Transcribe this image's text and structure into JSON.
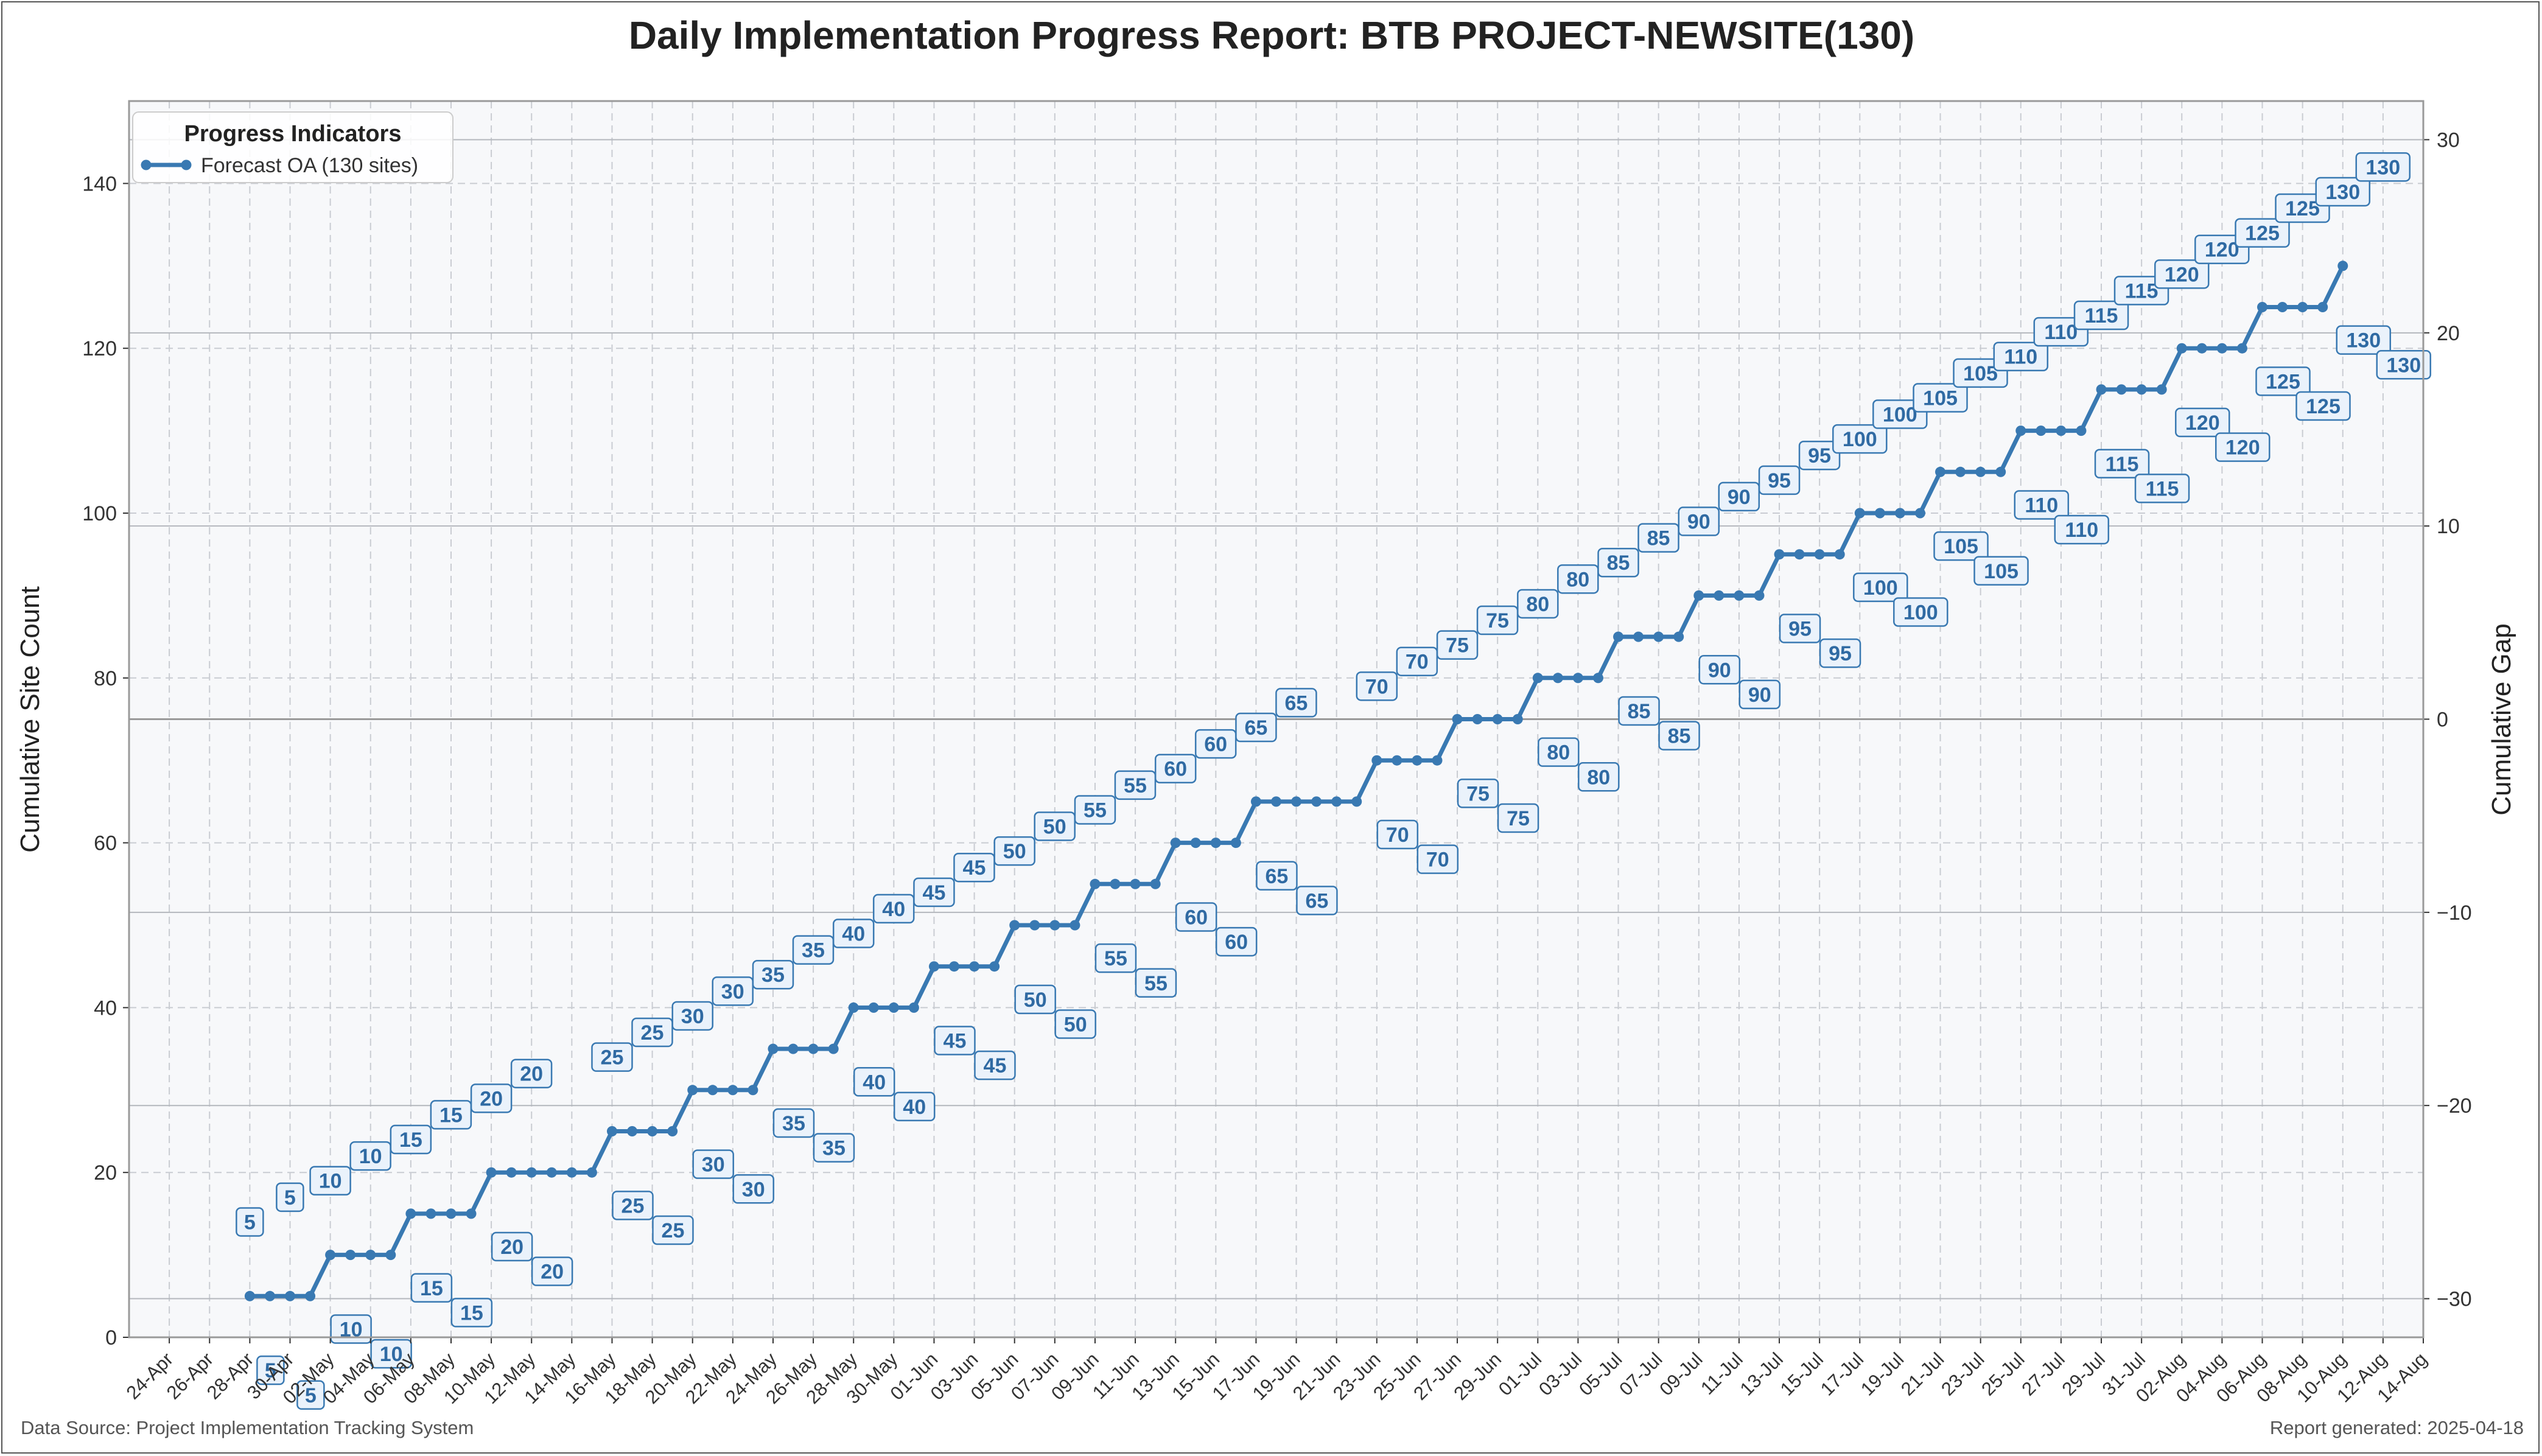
{
  "page": {
    "title": "Daily Implementation Progress Report: BTB PROJECT-NEWSITE(130)",
    "footer_left": "Data Source: Project Implementation Tracking System",
    "footer_right": "Report generated: 2025-04-18"
  },
  "colors": {
    "series": "#3979b2",
    "plot_bg": "#f7f8fa",
    "grid": "#c9ccd2",
    "ref_line": "#b4b7bd",
    "zero_line": "#9a9a9a",
    "annot_fill": "#eaf2fb",
    "annot_stroke": "#3979b2",
    "annot_text": "#2f6aa3"
  },
  "chart_data": {
    "type": "line",
    "title": "Daily Implementation Progress Report: BTB PROJECT-NEWSITE(130)",
    "xlabel": "",
    "ylabel": "Cumulative Site Count",
    "y2label": "Cumulative Gap",
    "xlim": [
      "2025-04-22",
      "2025-08-14"
    ],
    "ylim": [
      0,
      150
    ],
    "y2lim": [
      -32,
      32
    ],
    "y_ticks": [
      0,
      20,
      40,
      60,
      80,
      100,
      120,
      140
    ],
    "y2_ticks": [
      -30,
      -20,
      -10,
      0,
      10,
      20,
      30
    ],
    "x_tick_labels": [
      "24-Apr",
      "26-Apr",
      "28-Apr",
      "30-Apr",
      "02-May",
      "04-May",
      "06-May",
      "08-May",
      "10-May",
      "12-May",
      "14-May",
      "16-May",
      "18-May",
      "20-May",
      "22-May",
      "24-May",
      "26-May",
      "28-May",
      "30-May",
      "01-Jun",
      "03-Jun",
      "05-Jun",
      "07-Jun",
      "09-Jun",
      "11-Jun",
      "13-Jun",
      "15-Jun",
      "17-Jun",
      "19-Jun",
      "21-Jun",
      "23-Jun",
      "25-Jun",
      "27-Jun",
      "29-Jun",
      "01-Jul",
      "03-Jul",
      "05-Jul",
      "07-Jul",
      "09-Jul",
      "11-Jul",
      "13-Jul",
      "15-Jul",
      "17-Jul",
      "19-Jul",
      "21-Jul",
      "23-Jul",
      "25-Jul",
      "27-Jul",
      "29-Jul",
      "31-Jul",
      "02-Aug",
      "04-Aug",
      "06-Aug",
      "08-Aug",
      "10-Aug",
      "12-Aug",
      "14-Aug"
    ],
    "grid": true,
    "legend": {
      "title": "Progress Indicators",
      "placement": "top-left",
      "entries": [
        "Forecast OA (130 sites)"
      ]
    },
    "series": [
      {
        "name": "Forecast OA (130 sites)",
        "x_start": "2025-04-28",
        "x_end": "2025-08-09",
        "values": [
          5,
          5,
          5,
          5,
          10,
          10,
          10,
          10,
          15,
          15,
          15,
          15,
          20,
          20,
          20,
          20,
          20,
          20,
          25,
          25,
          25,
          25,
          30,
          30,
          30,
          30,
          35,
          35,
          35,
          35,
          40,
          40,
          40,
          40,
          45,
          45,
          45,
          45,
          50,
          50,
          50,
          50,
          55,
          55,
          55,
          55,
          60,
          60,
          60,
          60,
          65,
          65,
          65,
          65,
          65,
          65,
          70,
          70,
          70,
          70,
          75,
          75,
          75,
          75,
          80,
          80,
          80,
          80,
          85,
          85,
          85,
          85,
          90,
          90,
          90,
          90,
          95,
          95,
          95,
          95,
          100,
          100,
          100,
          100,
          105,
          105,
          105,
          105,
          110,
          110,
          110,
          110,
          115,
          115,
          115,
          115,
          120,
          120,
          120,
          120,
          125,
          125,
          125,
          125,
          130
        ]
      }
    ],
    "data_labels": [
      "5",
      "5",
      "5",
      "5",
      "10",
      "10",
      "10",
      "10",
      "15",
      "15",
      "15",
      "15",
      "20",
      "20",
      "20",
      "20",
      "20",
      "20",
      "25",
      "25",
      "25",
      "25",
      "30",
      "30",
      "30",
      "30",
      "35",
      "35",
      "35",
      "35",
      "40",
      "40",
      "40",
      "40",
      "45",
      "45",
      "45",
      "45",
      "50",
      "50",
      "50",
      "50",
      "55",
      "55",
      "55",
      "55",
      "60",
      "60",
      "60",
      "60",
      "65",
      "65",
      "65",
      "65",
      "65",
      "65",
      "70",
      "70",
      "70",
      "70",
      "75",
      "75",
      "75",
      "75",
      "80",
      "80",
      "80",
      "80",
      "85",
      "85",
      "85",
      "85",
      "90",
      "90",
      "90",
      "90",
      "95",
      "95",
      "95",
      "95",
      "100",
      "100",
      "100",
      "100",
      "105",
      "105",
      "105",
      "105",
      "110",
      "110",
      "110",
      "110",
      "115",
      "115",
      "115",
      "115",
      "120",
      "120",
      "120",
      "120",
      "125",
      "125",
      "125",
      "125",
      "130"
    ],
    "right_axis_lines": [
      -30,
      -20,
      -10,
      0,
      10,
      20,
      30
    ]
  }
}
